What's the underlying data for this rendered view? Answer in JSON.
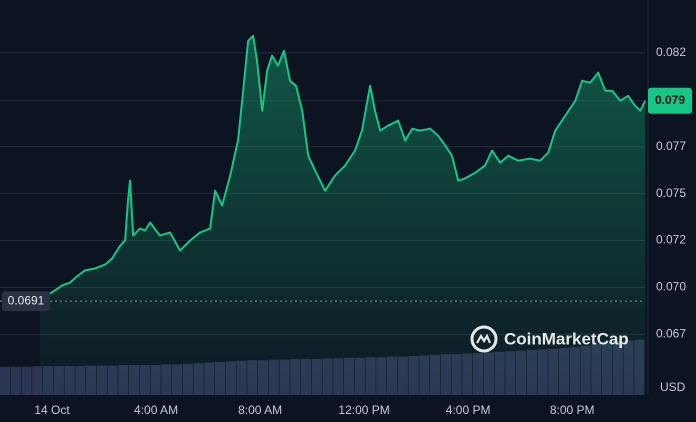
{
  "chart_data": {
    "type": "line",
    "color": "#16c784",
    "x": [
      -0.46,
      -0.08,
      0.12,
      0.38,
      0.69,
      1,
      1.27,
      1.65,
      2.04,
      2.31,
      2.62,
      2.81,
      2.92,
      3,
      3.12,
      3.38,
      3.58,
      3.77,
      4.15,
      4.54,
      4.92,
      5.31,
      5.69,
      6.08,
      6.27,
      6.54,
      6.85,
      7.15,
      7.35,
      7.54,
      7.73,
      7.88,
      8.08,
      8.27,
      8.46,
      8.69,
      8.92,
      9.15,
      9.38,
      9.62,
      9.85,
      10.12,
      10.5,
      10.88,
      11.27,
      11.65,
      11.92,
      12.23,
      12.42,
      12.62,
      12.92,
      13.31,
      13.58,
      13.85,
      14.15,
      14.54,
      14.85,
      15.12,
      15.38,
      15.62,
      15.88,
      16.27,
      16.65,
      16.92,
      17.23,
      17.54,
      17.92,
      18.38,
      18.77,
      19.08,
      19.35,
      19.73,
      20.12,
      20.38,
      20.69,
      21,
      21.27,
      21.54,
      21.85,
      22.15,
      22.42,
      22.62,
      22.81
    ],
    "values": [
      0.06914,
      0.06949,
      0.06965,
      0.0699,
      0.07005,
      0.07041,
      0.07067,
      0.07077,
      0.07097,
      0.07128,
      0.07194,
      0.0722,
      0.07424,
      0.07526,
      0.07245,
      0.07281,
      0.07271,
      0.07312,
      0.07245,
      0.07261,
      0.07169,
      0.0722,
      0.07261,
      0.07281,
      0.07475,
      0.07399,
      0.07552,
      0.07731,
      0.07986,
      0.08241,
      0.08267,
      0.08139,
      0.07884,
      0.08088,
      0.08165,
      0.08114,
      0.0819,
      0.08037,
      0.08011,
      0.07884,
      0.07654,
      0.07577,
      0.07475,
      0.07552,
      0.07603,
      0.0768,
      0.07782,
      0.08011,
      0.07884,
      0.07782,
      0.07807,
      0.07833,
      0.07731,
      0.07792,
      0.07782,
      0.07792,
      0.07756,
      0.07705,
      0.07654,
      0.07526,
      0.07537,
      0.07567,
      0.07603,
      0.0768,
      0.07618,
      0.07654,
      0.07628,
      0.07639,
      0.07628,
      0.07669,
      0.07782,
      0.07858,
      0.07935,
      0.08037,
      0.08027,
      0.08078,
      0.07986,
      0.07986,
      0.07935,
      0.0796,
      0.07909,
      0.07884,
      0.07935
    ],
    "xlim": [
      -2,
      22.8
    ],
    "ylim": [
      0.0643,
      0.0845
    ],
    "xticks": [
      {
        "value": 0,
        "label": "14 Oct"
      },
      {
        "value": 4,
        "label": "4:00 AM"
      },
      {
        "value": 8,
        "label": "8:00 AM"
      },
      {
        "value": 12,
        "label": "12:00 PM"
      },
      {
        "value": 16,
        "label": "4:00 PM"
      },
      {
        "value": 20,
        "label": "8:00 PM"
      }
    ],
    "yticks": [
      {
        "value": 0.0674,
        "label": "0.067"
      },
      {
        "value": 0.0698,
        "label": "0.070"
      },
      {
        "value": 0.0722,
        "label": "0.072"
      },
      {
        "value": 0.0746,
        "label": "0.075"
      },
      {
        "value": 0.077,
        "label": "0.077"
      },
      {
        "value": 0.0818,
        "label": "0.082"
      }
    ],
    "grid": true,
    "price_badge": {
      "value": 0.07935,
      "label": "0.079"
    },
    "open_price": 0.0691,
    "currency": "USD",
    "watermark": "CoinMarketCap",
    "volume": {
      "color": "#2c3553",
      "lim": [
        0,
        100
      ],
      "values": [
        47,
        47,
        47,
        48,
        48,
        48,
        48,
        48,
        49,
        49,
        49,
        50,
        50,
        50,
        50,
        51,
        51,
        52,
        53,
        54,
        55,
        56,
        57,
        58,
        58,
        59,
        59,
        60,
        60,
        60,
        61,
        61,
        62,
        62,
        63,
        63,
        64,
        64,
        65,
        66,
        67,
        68,
        68,
        69,
        70,
        71,
        72,
        73,
        74,
        75,
        76,
        77,
        78,
        80,
        82,
        85,
        88,
        90,
        91,
        92
      ]
    }
  }
}
